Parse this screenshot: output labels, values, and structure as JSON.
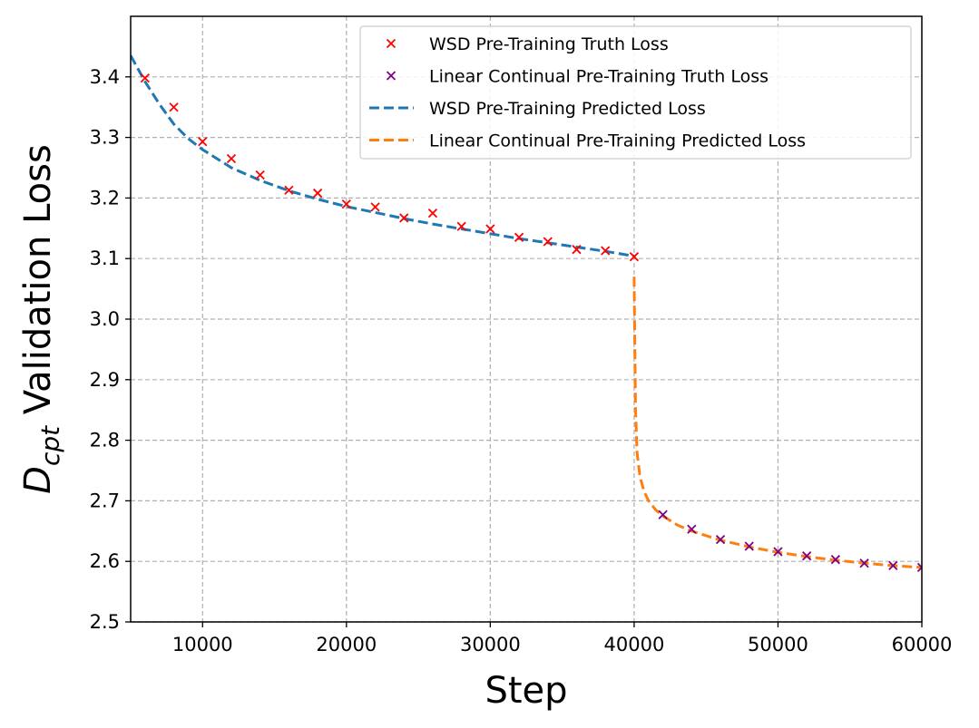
{
  "chart_data": {
    "type": "line",
    "xlabel": "Step",
    "ylabel_main": "D",
    "ylabel_sub": "cpt",
    "ylabel_rest": " Validation Loss",
    "xlim": [
      5000,
      60000
    ],
    "ylim": [
      2.5,
      3.5
    ],
    "x_ticks": [
      10000,
      20000,
      30000,
      40000,
      50000,
      60000
    ],
    "y_ticks": [
      2.5,
      2.6,
      2.7,
      2.8,
      2.9,
      3.0,
      3.1,
      3.2,
      3.3,
      3.4
    ],
    "x_tick_labels": [
      "10000",
      "20000",
      "30000",
      "40000",
      "50000",
      "60000"
    ],
    "y_tick_labels": [
      "2.5",
      "2.6",
      "2.7",
      "2.8",
      "2.9",
      "3.0",
      "3.1",
      "3.2",
      "3.3",
      "3.4"
    ],
    "grid": true,
    "legend_position": "top-right",
    "series": [
      {
        "name": "WSD Pre-Training Truth Loss",
        "kind": "scatter",
        "marker": "x",
        "color": "#ff0000",
        "x": [
          6000,
          8000,
          10000,
          12000,
          14000,
          16000,
          18000,
          20000,
          22000,
          24000,
          26000,
          28000,
          30000,
          32000,
          34000,
          36000,
          38000,
          40000
        ],
        "y": [
          3.398,
          3.35,
          3.293,
          3.265,
          3.238,
          3.213,
          3.208,
          3.19,
          3.185,
          3.167,
          3.175,
          3.153,
          3.149,
          3.135,
          3.128,
          3.115,
          3.113,
          3.103
        ]
      },
      {
        "name": "Linear Continual Pre-Training Truth Loss",
        "kind": "scatter",
        "marker": "x",
        "color": "#800080",
        "x": [
          42000,
          44000,
          46000,
          48000,
          50000,
          52000,
          54000,
          56000,
          58000,
          60000
        ],
        "y": [
          2.677,
          2.653,
          2.636,
          2.625,
          2.616,
          2.609,
          2.603,
          2.597,
          2.593,
          2.59
        ]
      },
      {
        "name": "WSD Pre-Training Predicted Loss",
        "kind": "line",
        "dash": "dashed",
        "color": "#1f77b4",
        "x": [
          5000,
          6000,
          7000,
          8000,
          9000,
          10000,
          12000,
          14000,
          16000,
          18000,
          20000,
          22000,
          24000,
          26000,
          28000,
          30000,
          32000,
          34000,
          36000,
          38000,
          40000
        ],
        "y": [
          3.435,
          3.392,
          3.355,
          3.322,
          3.298,
          3.28,
          3.25,
          3.229,
          3.212,
          3.198,
          3.186,
          3.176,
          3.166,
          3.157,
          3.149,
          3.141,
          3.133,
          3.126,
          3.119,
          3.112,
          3.104
        ]
      },
      {
        "name": "Linear Continual Pre-Training Predicted Loss",
        "kind": "line",
        "dash": "dashed",
        "color": "#ff7f0e",
        "x": [
          40000,
          40050,
          40100,
          40200,
          40400,
          40700,
          41000,
          41500,
          42000,
          43000,
          44000,
          46000,
          48000,
          50000,
          52000,
          54000,
          56000,
          58000,
          60000
        ],
        "y": [
          3.07,
          2.95,
          2.85,
          2.78,
          2.74,
          2.715,
          2.7,
          2.685,
          2.675,
          2.66,
          2.65,
          2.635,
          2.624,
          2.615,
          2.608,
          2.602,
          2.597,
          2.593,
          2.59
        ]
      }
    ]
  }
}
